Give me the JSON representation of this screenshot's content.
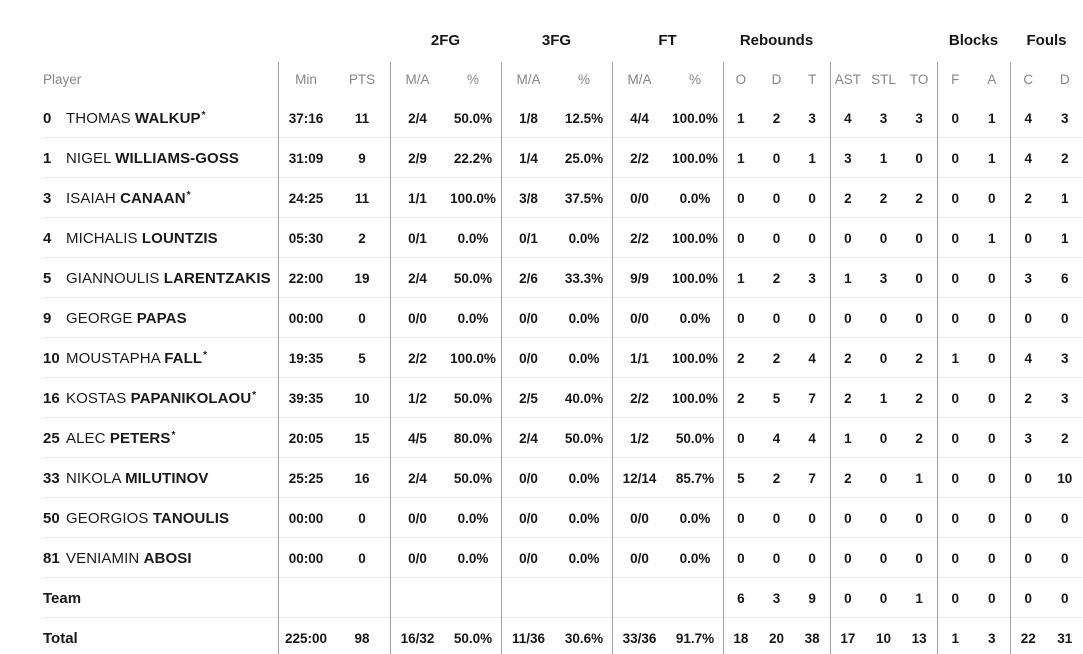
{
  "table": {
    "group_headers": {
      "fg2": "2FG",
      "fg3": "3FG",
      "ft": "FT",
      "rebounds": "Rebounds",
      "blocks": "Blocks",
      "fouls": "Fouls"
    },
    "column_headers": {
      "player": "Player",
      "min": "Min",
      "pts": "PTS",
      "ma": "M/A",
      "pct": "%",
      "o": "O",
      "d": "D",
      "t": "T",
      "ast": "AST",
      "stl": "STL",
      "to": "TO",
      "f": "F",
      "a": "A",
      "c": "C",
      "d2": "D"
    },
    "starter_mark": "*",
    "rows": [
      {
        "num": "0",
        "first": "THOMAS",
        "last": "WALKUP",
        "starter": true,
        "min": "37:16",
        "pts": "11",
        "fg2_ma": "2/4",
        "fg2_pct": "50.0%",
        "fg3_ma": "1/8",
        "fg3_pct": "12.5%",
        "ft_ma": "4/4",
        "ft_pct": "100.0%",
        "reb_o": "1",
        "reb_d": "2",
        "reb_t": "3",
        "ast": "4",
        "stl": "3",
        "to": "3",
        "blk_f": "0",
        "blk_a": "1",
        "foul_c": "4",
        "foul_d": "3"
      },
      {
        "num": "1",
        "first": "NIGEL",
        "last": "WILLIAMS-GOSS",
        "starter": false,
        "min": "31:09",
        "pts": "9",
        "fg2_ma": "2/9",
        "fg2_pct": "22.2%",
        "fg3_ma": "1/4",
        "fg3_pct": "25.0%",
        "ft_ma": "2/2",
        "ft_pct": "100.0%",
        "reb_o": "1",
        "reb_d": "0",
        "reb_t": "1",
        "ast": "3",
        "stl": "1",
        "to": "0",
        "blk_f": "0",
        "blk_a": "1",
        "foul_c": "4",
        "foul_d": "2"
      },
      {
        "num": "3",
        "first": "ISAIAH",
        "last": "CANAAN",
        "starter": true,
        "min": "24:25",
        "pts": "11",
        "fg2_ma": "1/1",
        "fg2_pct": "100.0%",
        "fg3_ma": "3/8",
        "fg3_pct": "37.5%",
        "ft_ma": "0/0",
        "ft_pct": "0.0%",
        "reb_o": "0",
        "reb_d": "0",
        "reb_t": "0",
        "ast": "2",
        "stl": "2",
        "to": "2",
        "blk_f": "0",
        "blk_a": "0",
        "foul_c": "2",
        "foul_d": "1"
      },
      {
        "num": "4",
        "first": "MICHALIS",
        "last": "LOUNTZIS",
        "starter": false,
        "min": "05:30",
        "pts": "2",
        "fg2_ma": "0/1",
        "fg2_pct": "0.0%",
        "fg3_ma": "0/1",
        "fg3_pct": "0.0%",
        "ft_ma": "2/2",
        "ft_pct": "100.0%",
        "reb_o": "0",
        "reb_d": "0",
        "reb_t": "0",
        "ast": "0",
        "stl": "0",
        "to": "0",
        "blk_f": "0",
        "blk_a": "1",
        "foul_c": "0",
        "foul_d": "1"
      },
      {
        "num": "5",
        "first": "GIANNOULIS",
        "last": "LARENTZAKIS",
        "starter": false,
        "min": "22:00",
        "pts": "19",
        "fg2_ma": "2/4",
        "fg2_pct": "50.0%",
        "fg3_ma": "2/6",
        "fg3_pct": "33.3%",
        "ft_ma": "9/9",
        "ft_pct": "100.0%",
        "reb_o": "1",
        "reb_d": "2",
        "reb_t": "3",
        "ast": "1",
        "stl": "3",
        "to": "0",
        "blk_f": "0",
        "blk_a": "0",
        "foul_c": "3",
        "foul_d": "6"
      },
      {
        "num": "9",
        "first": "GEORGE",
        "last": "PAPAS",
        "starter": false,
        "min": "00:00",
        "pts": "0",
        "fg2_ma": "0/0",
        "fg2_pct": "0.0%",
        "fg3_ma": "0/0",
        "fg3_pct": "0.0%",
        "ft_ma": "0/0",
        "ft_pct": "0.0%",
        "reb_o": "0",
        "reb_d": "0",
        "reb_t": "0",
        "ast": "0",
        "stl": "0",
        "to": "0",
        "blk_f": "0",
        "blk_a": "0",
        "foul_c": "0",
        "foul_d": "0"
      },
      {
        "num": "10",
        "first": "MOUSTAPHA",
        "last": "FALL",
        "starter": true,
        "min": "19:35",
        "pts": "5",
        "fg2_ma": "2/2",
        "fg2_pct": "100.0%",
        "fg3_ma": "0/0",
        "fg3_pct": "0.0%",
        "ft_ma": "1/1",
        "ft_pct": "100.0%",
        "reb_o": "2",
        "reb_d": "2",
        "reb_t": "4",
        "ast": "2",
        "stl": "0",
        "to": "2",
        "blk_f": "1",
        "blk_a": "0",
        "foul_c": "4",
        "foul_d": "3"
      },
      {
        "num": "16",
        "first": "KOSTAS",
        "last": "PAPANIKOLAOU",
        "starter": true,
        "min": "39:35",
        "pts": "10",
        "fg2_ma": "1/2",
        "fg2_pct": "50.0%",
        "fg3_ma": "2/5",
        "fg3_pct": "40.0%",
        "ft_ma": "2/2",
        "ft_pct": "100.0%",
        "reb_o": "2",
        "reb_d": "5",
        "reb_t": "7",
        "ast": "2",
        "stl": "1",
        "to": "2",
        "blk_f": "0",
        "blk_a": "0",
        "foul_c": "2",
        "foul_d": "3"
      },
      {
        "num": "25",
        "first": "ALEC",
        "last": "PETERS",
        "starter": true,
        "min": "20:05",
        "pts": "15",
        "fg2_ma": "4/5",
        "fg2_pct": "80.0%",
        "fg3_ma": "2/4",
        "fg3_pct": "50.0%",
        "ft_ma": "1/2",
        "ft_pct": "50.0%",
        "reb_o": "0",
        "reb_d": "4",
        "reb_t": "4",
        "ast": "1",
        "stl": "0",
        "to": "2",
        "blk_f": "0",
        "blk_a": "0",
        "foul_c": "3",
        "foul_d": "2"
      },
      {
        "num": "33",
        "first": "NIKOLA",
        "last": "MILUTINOV",
        "starter": false,
        "min": "25:25",
        "pts": "16",
        "fg2_ma": "2/4",
        "fg2_pct": "50.0%",
        "fg3_ma": "0/0",
        "fg3_pct": "0.0%",
        "ft_ma": "12/14",
        "ft_pct": "85.7%",
        "reb_o": "5",
        "reb_d": "2",
        "reb_t": "7",
        "ast": "2",
        "stl": "0",
        "to": "1",
        "blk_f": "0",
        "blk_a": "0",
        "foul_c": "0",
        "foul_d": "10"
      },
      {
        "num": "50",
        "first": "GEORGIOS",
        "last": "TANOULIS",
        "starter": false,
        "min": "00:00",
        "pts": "0",
        "fg2_ma": "0/0",
        "fg2_pct": "0.0%",
        "fg3_ma": "0/0",
        "fg3_pct": "0.0%",
        "ft_ma": "0/0",
        "ft_pct": "0.0%",
        "reb_o": "0",
        "reb_d": "0",
        "reb_t": "0",
        "ast": "0",
        "stl": "0",
        "to": "0",
        "blk_f": "0",
        "blk_a": "0",
        "foul_c": "0",
        "foul_d": "0"
      },
      {
        "num": "81",
        "first": "VENIAMIN",
        "last": "ABOSI",
        "starter": false,
        "min": "00:00",
        "pts": "0",
        "fg2_ma": "0/0",
        "fg2_pct": "0.0%",
        "fg3_ma": "0/0",
        "fg3_pct": "0.0%",
        "ft_ma": "0/0",
        "ft_pct": "0.0%",
        "reb_o": "0",
        "reb_d": "0",
        "reb_t": "0",
        "ast": "0",
        "stl": "0",
        "to": "0",
        "blk_f": "0",
        "blk_a": "0",
        "foul_c": "0",
        "foul_d": "0"
      },
      {
        "label": "Team",
        "min": "",
        "pts": "",
        "fg2_ma": "",
        "fg2_pct": "",
        "fg3_ma": "",
        "fg3_pct": "",
        "ft_ma": "",
        "ft_pct": "",
        "reb_o": "6",
        "reb_d": "3",
        "reb_t": "9",
        "ast": "0",
        "stl": "0",
        "to": "1",
        "blk_f": "0",
        "blk_a": "0",
        "foul_c": "0",
        "foul_d": "0"
      },
      {
        "label": "Total",
        "min": "225:00",
        "pts": "98",
        "fg2_ma": "16/32",
        "fg2_pct": "50.0%",
        "fg3_ma": "11/36",
        "fg3_pct": "30.6%",
        "ft_ma": "33/36",
        "ft_pct": "91.7%",
        "reb_o": "18",
        "reb_d": "20",
        "reb_t": "38",
        "ast": "17",
        "stl": "10",
        "to": "13",
        "blk_f": "1",
        "blk_a": "3",
        "foul_c": "22",
        "foul_d": "31"
      }
    ]
  },
  "colors": {
    "text_dark": "#17171a",
    "text_gray": "#85858c",
    "divider_vertical": "#a2a2a7",
    "divider_horizontal": "#ebebee",
    "background": "#ffffff"
  }
}
